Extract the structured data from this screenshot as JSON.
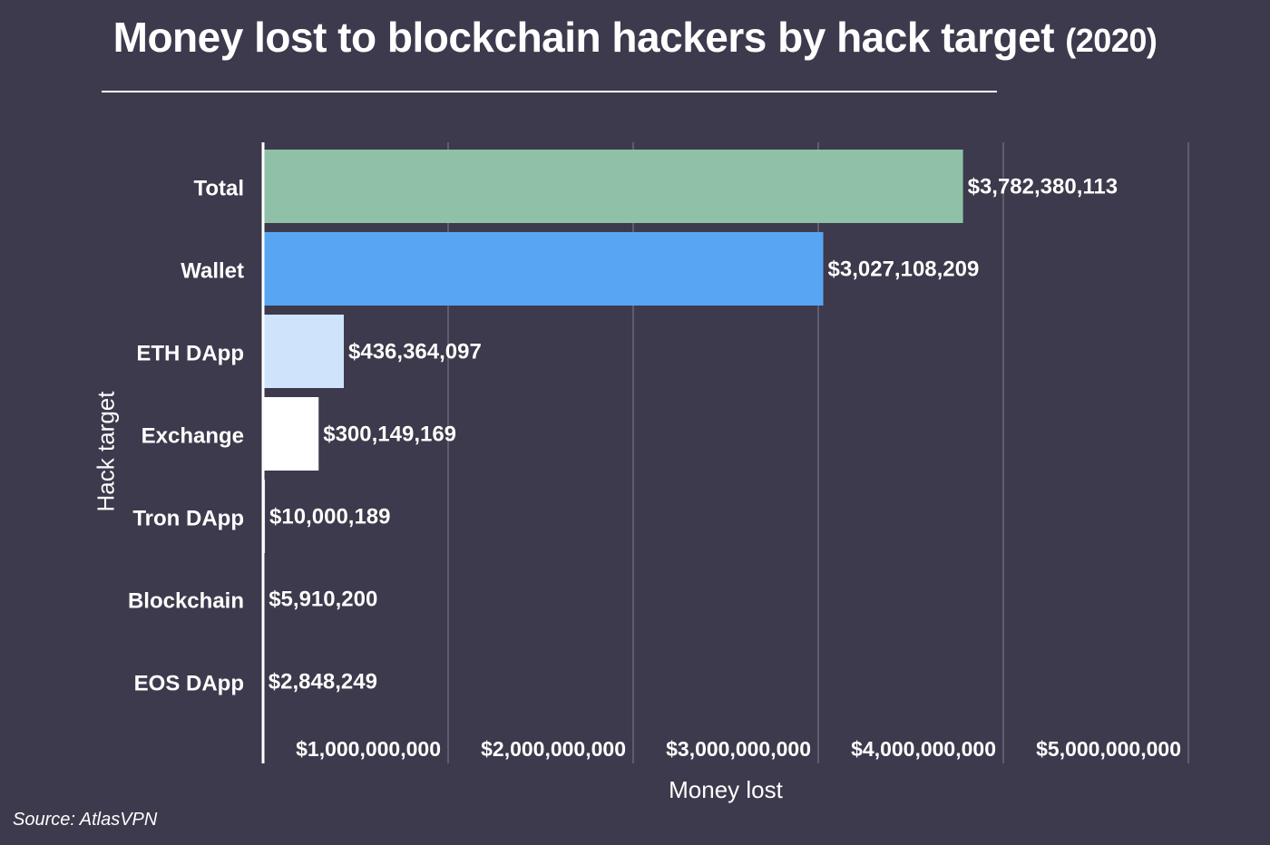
{
  "title": {
    "main": "Money lost to blockchain hackers by hack target",
    "year": "(2020)"
  },
  "source": "Source: AtlasVPN",
  "colors": {
    "background": "#3c3a4c",
    "text": "#ffffff",
    "gridline": "#6a6878",
    "bars": [
      "#8fc1a9",
      "#58a5f4",
      "#cfe3fb",
      "#ffffff",
      "#cfe3fb",
      "#ffffff",
      "#ffffff"
    ]
  },
  "chart_data": {
    "type": "bar",
    "orientation": "horizontal",
    "title": "Money lost to blockchain hackers by hack target (2020)",
    "xlabel": "Money lost",
    "ylabel": "Hack target",
    "categories": [
      "Total",
      "Wallet",
      "ETH DApp",
      "Exchange",
      "Tron DApp",
      "Blockchain",
      "EOS DApp"
    ],
    "values": [
      3782380113,
      3027108209,
      436364097,
      300149169,
      10000189,
      5910200,
      2848249
    ],
    "data_labels": [
      "$3,782,380,113",
      "$3,027,108,209",
      "$436,364,097",
      "$300,149,169",
      "$10,000,189",
      "$5,910,200",
      "$2,848,249"
    ],
    "xlim": [
      0,
      5000000000
    ],
    "xticks": [
      1000000000,
      2000000000,
      3000000000,
      4000000000,
      5000000000
    ],
    "xtick_labels": [
      "$1,000,000,000",
      "$2,000,000,000",
      "$3,000,000,000",
      "$4,000,000,000",
      "$5,000,000,000"
    ],
    "grid": true,
    "legend": "none"
  }
}
